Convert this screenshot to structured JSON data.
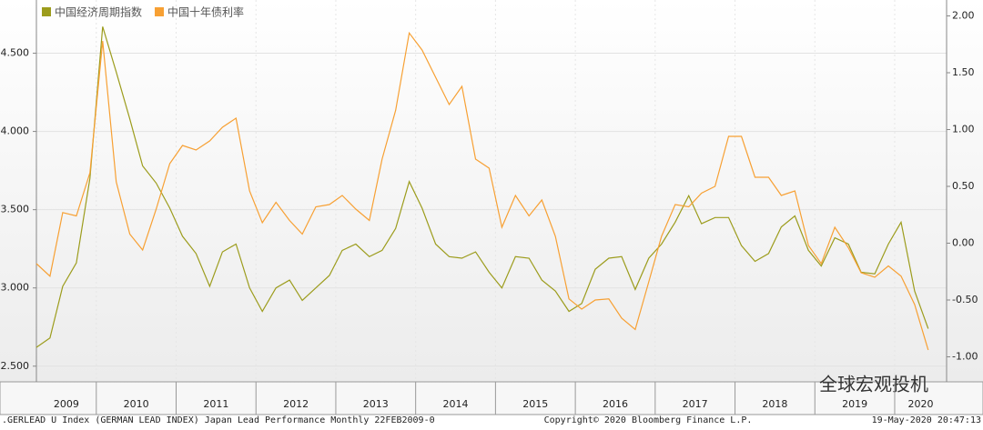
{
  "chart_data": {
    "type": "line",
    "legend": "top-left",
    "grid": true,
    "x": [
      2009.25,
      2009.42,
      2009.58,
      2009.75,
      2009.92,
      2010.08,
      2010.25,
      2010.42,
      2010.58,
      2010.75,
      2010.92,
      2011.08,
      2011.25,
      2011.42,
      2011.58,
      2011.75,
      2011.92,
      2012.08,
      2012.25,
      2012.42,
      2012.58,
      2012.75,
      2012.92,
      2013.08,
      2013.25,
      2013.42,
      2013.58,
      2013.75,
      2013.92,
      2014.08,
      2014.25,
      2014.42,
      2014.58,
      2014.75,
      2014.92,
      2015.08,
      2015.25,
      2015.42,
      2015.58,
      2015.75,
      2015.92,
      2016.08,
      2016.25,
      2016.42,
      2016.58,
      2016.75,
      2016.92,
      2017.08,
      2017.25,
      2017.42,
      2017.58,
      2017.75,
      2017.92,
      2018.08,
      2018.25,
      2018.42,
      2018.58,
      2018.75,
      2018.92,
      2019.08,
      2019.25,
      2019.42,
      2019.58,
      2019.75,
      2019.92,
      2020.08,
      2020.25,
      2020.42
    ],
    "xlim": [
      2009.25,
      2020.65
    ],
    "xticks": [
      2009,
      2010,
      2011,
      2012,
      2013,
      2014,
      2015,
      2016,
      2017,
      2018,
      2019,
      2020
    ],
    "ylim": [
      2.4,
      4.84
    ],
    "yticks": [
      {
        "value": 2.5,
        "label": "2.500"
      },
      {
        "value": 3.0,
        "label": "3.000"
      },
      {
        "value": 3.5,
        "label": "3.500"
      },
      {
        "value": 4.0,
        "label": "4.000"
      },
      {
        "value": 4.5,
        "label": "4.500"
      }
    ],
    "y2lim": [
      -1.22,
      2.14
    ],
    "y2ticks": [
      {
        "value": -1,
        "label": "-1.00"
      },
      {
        "value": -0.5,
        "label": "-0.50"
      },
      {
        "value": 0,
        "label": "0.00"
      },
      {
        "value": 0.5,
        "label": "0.50"
      },
      {
        "value": 1,
        "label": "1.00"
      },
      {
        "value": 1.5,
        "label": "1.50"
      },
      {
        "value": 2,
        "label": "2.00"
      }
    ],
    "series": [
      {
        "name": "中国经济周期指数",
        "color": "#9c9c1c",
        "axis": "y",
        "values": [
          2.62,
          2.68,
          3.01,
          3.16,
          3.7,
          4.67,
          4.38,
          4.08,
          3.78,
          3.67,
          3.51,
          3.33,
          3.22,
          3.01,
          3.23,
          3.28,
          3.0,
          2.85,
          3.0,
          3.05,
          2.92,
          3.0,
          3.08,
          3.24,
          3.28,
          3.2,
          3.24,
          3.38,
          3.68,
          3.51,
          3.28,
          3.2,
          3.19,
          3.23,
          3.1,
          3.0,
          3.2,
          3.19,
          3.05,
          2.98,
          2.85,
          2.9,
          3.12,
          3.19,
          3.2,
          2.99,
          3.19,
          3.28,
          3.42,
          3.59,
          3.41,
          3.45,
          3.45,
          3.27,
          3.17,
          3.22,
          3.39,
          3.46,
          3.24,
          3.14,
          3.32,
          3.28,
          3.1,
          3.09,
          3.28,
          3.42,
          2.98,
          2.74
        ]
      },
      {
        "name": "中国十年债利率",
        "color": "#f7a033",
        "axis": "y2",
        "values": [
          -0.18,
          -0.29,
          0.27,
          0.24,
          0.62,
          1.78,
          0.54,
          0.08,
          -0.06,
          0.3,
          0.7,
          0.86,
          0.82,
          0.9,
          1.02,
          1.1,
          0.46,
          0.18,
          0.36,
          0.2,
          0.08,
          0.32,
          0.34,
          0.42,
          0.3,
          0.2,
          0.74,
          1.17,
          1.85,
          1.7,
          1.46,
          1.22,
          1.38,
          0.74,
          0.66,
          0.14,
          0.42,
          0.24,
          0.38,
          0.06,
          -0.49,
          -0.58,
          -0.5,
          -0.49,
          -0.66,
          -0.76,
          -0.34,
          0.06,
          0.34,
          0.32,
          0.44,
          0.5,
          0.94,
          0.94,
          0.58,
          0.58,
          0.42,
          0.46,
          -0.02,
          -0.18,
          0.14,
          -0.04,
          -0.26,
          -0.3,
          -0.2,
          -0.29,
          -0.54,
          -0.94
        ]
      }
    ],
    "watermark": "全球宏观投机",
    "footer_left": ".GERLEAD U Index (GERMAN LEAD INDEX) Japan Lead Performance  Monthly 22FEB2009-0",
    "footer_center": "Copyright© 2020 Bloomberg Finance L.P.",
    "footer_right": "19-May-2020 20:47:13"
  }
}
